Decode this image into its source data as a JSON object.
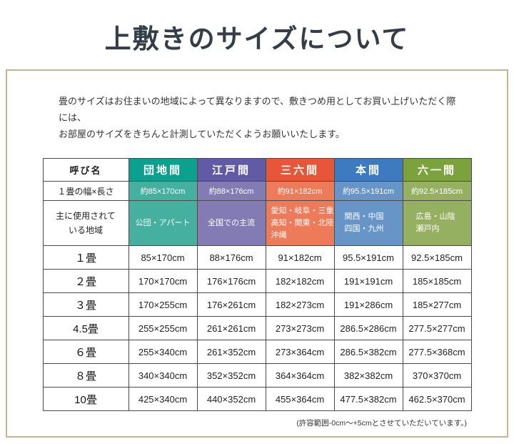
{
  "page": {
    "title": "上敷きのサイズについて",
    "intro_line1": "畳のサイズはお住まいの地域によって異なりますので、敷きつめ用としてお買い上げいただく際には、",
    "intro_line2": "お部屋のサイズをきちんと計測していただくようお願いいたします。",
    "footnote": "(許容範囲-0cm～+5cmとさせていただいています。)"
  },
  "colors": {
    "frame_border": "#c6b48c",
    "table_border": "#4a4a4a"
  },
  "table": {
    "corner_label": "呼び名",
    "width_row_label": "１畳の幅×長さ",
    "region_row_label": "主に使用されて\nいる地域",
    "columns": [
      {
        "name": "団地間",
        "approx_size": "約85×170cm",
        "region": "公団・アパート",
        "header_color": "#0ba18e",
        "sub_color": "#46b0a0"
      },
      {
        "name": "江戸間",
        "approx_size": "約88×176cm",
        "region": "全国での主流",
        "header_color": "#615aa5",
        "sub_color": "#837cb4"
      },
      {
        "name": "三六間",
        "approx_size": "約91×182cm",
        "region": "愛知・岐阜・三重\n高知・関東・北陸\n沖縄",
        "header_color": "#e8563a",
        "sub_color": "#ed7b5a"
      },
      {
        "name": "本間",
        "approx_size": "約95.5×191cm",
        "region": "関西・中国\n四国・九州",
        "header_color": "#3d7abf",
        "sub_color": "#6795c8"
      },
      {
        "name": "六一間",
        "approx_size": "約92.5×185cm",
        "region": "広島・山陰\n瀬戸内",
        "header_color": "#7ba23d",
        "sub_color": "#96b061"
      }
    ],
    "size_rows": [
      {
        "label": "１畳",
        "values": [
          "85×170cm",
          "88×176cm",
          "91×182cm",
          "95.5×191cm",
          "92.5×185cm"
        ]
      },
      {
        "label": "２畳",
        "values": [
          "170×170cm",
          "176×176cm",
          "182×182cm",
          "191×191cm",
          "185×185cm"
        ]
      },
      {
        "label": "３畳",
        "values": [
          "170×255cm",
          "176×261cm",
          "182×273cm",
          "191×286cm",
          "185×277cm"
        ]
      },
      {
        "label": "4.5畳",
        "values": [
          "255×255cm",
          "261×261cm",
          "273×273cm",
          "286.5×286cm",
          "277.5×277cm"
        ]
      },
      {
        "label": "６畳",
        "values": [
          "255×340cm",
          "261×352cm",
          "273×364cm",
          "286.5×382cm",
          "277.5×368cm"
        ]
      },
      {
        "label": "８畳",
        "values": [
          "340×340cm",
          "352×352cm",
          "364×364cm",
          "382×382cm",
          "370×370cm"
        ]
      },
      {
        "label": "10畳",
        "values": [
          "425×340cm",
          "440×352cm",
          "455×364cm",
          "477.5×382cm",
          "462.5×370cm"
        ]
      }
    ]
  }
}
